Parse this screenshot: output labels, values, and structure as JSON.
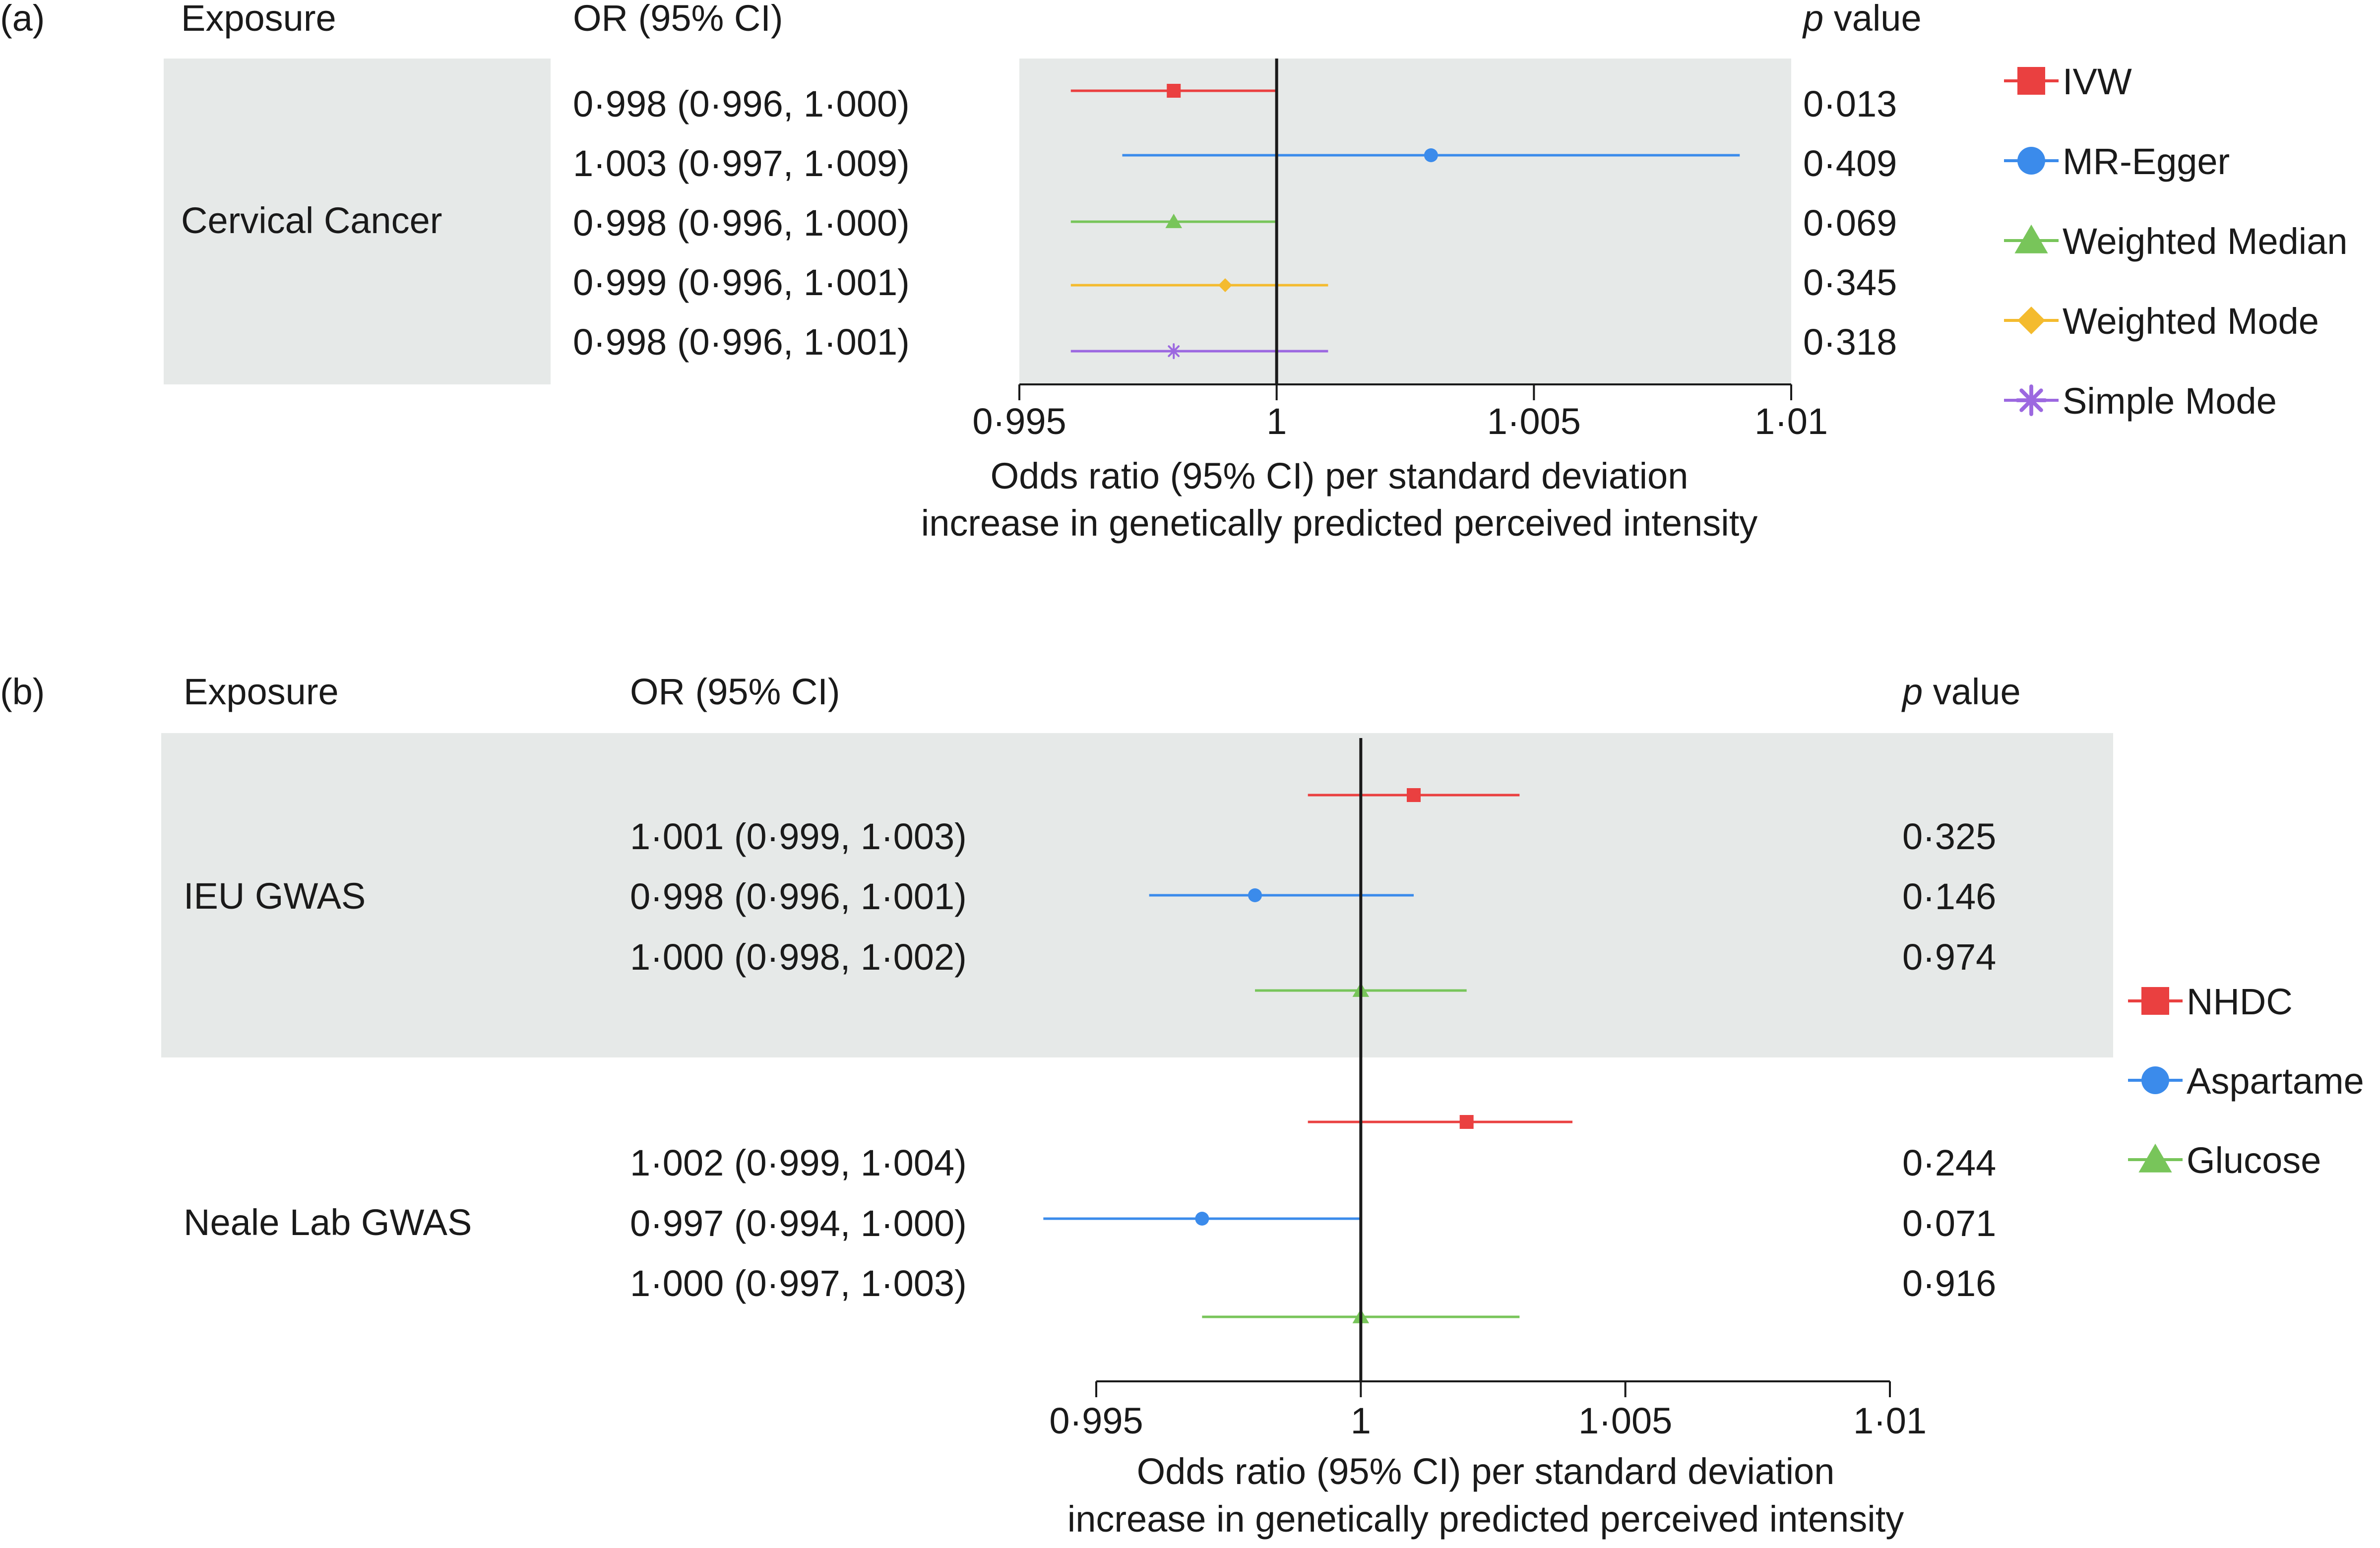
{
  "chart_data": [
    {
      "type": "forest",
      "panel_label": "(a)",
      "headers": {
        "exposure": "Exposure",
        "or": "OR (95% CI)",
        "p_italic": "p",
        "p_rest": " value"
      },
      "axis": {
        "min": 0.995,
        "max": 1.01,
        "ref": 1,
        "ticks": [
          {
            "v": 0.995,
            "label": "0·995"
          },
          {
            "v": 1,
            "label": "1"
          },
          {
            "v": 1.005,
            "label": "1·005"
          },
          {
            "v": 1.01,
            "label": "1·01"
          }
        ],
        "xlabel_line1": "Odds ratio (95% CI) per standard deviation",
        "xlabel_line2": "increase in genetically predicted perceived intensity"
      },
      "legend": [
        {
          "name": "IVW",
          "color": "#ea4040",
          "marker": "square"
        },
        {
          "name": "MR-Egger",
          "color": "#3b8beb",
          "marker": "circle"
        },
        {
          "name": "Weighted Median",
          "color": "#78c55a",
          "marker": "triangle"
        },
        {
          "name": "Weighted Mode",
          "color": "#f4bb2e",
          "marker": "diamond"
        },
        {
          "name": "Simple Mode",
          "color": "#9c68e0",
          "marker": "asterisk"
        }
      ],
      "groups": [
        {
          "exposure": "Cervical Cancer",
          "rows": [
            {
              "method": "IVW",
              "or": 0.998,
              "lo": 0.996,
              "hi": 1.0,
              "or_text": "0·998 (0·996, 1·000)",
              "p_text": "0·013"
            },
            {
              "method": "MR-Egger",
              "or": 1.003,
              "lo": 0.997,
              "hi": 1.009,
              "or_text": "1·003 (0·997, 1·009)",
              "p_text": "0·409"
            },
            {
              "method": "Weighted Median",
              "or": 0.998,
              "lo": 0.996,
              "hi": 1.0,
              "or_text": "0·998 (0·996, 1·000)",
              "p_text": "0·069"
            },
            {
              "method": "Weighted Mode",
              "or": 0.999,
              "lo": 0.996,
              "hi": 1.001,
              "or_text": "0·999 (0·996, 1·001)",
              "p_text": "0·345"
            },
            {
              "method": "Simple Mode",
              "or": 0.998,
              "lo": 0.996,
              "hi": 1.001,
              "or_text": "0·998 (0·996, 1·001)",
              "p_text": "0·318"
            }
          ]
        }
      ]
    },
    {
      "type": "forest",
      "panel_label": "(b)",
      "headers": {
        "exposure": "Exposure",
        "or": "OR (95% CI)",
        "p_italic": "p",
        "p_rest": " value"
      },
      "axis": {
        "min": 0.995,
        "max": 1.01,
        "ref": 1,
        "ticks": [
          {
            "v": 0.995,
            "label": "0·995"
          },
          {
            "v": 1,
            "label": "1"
          },
          {
            "v": 1.005,
            "label": "1·005"
          },
          {
            "v": 1.01,
            "label": "1·01"
          }
        ],
        "xlabel_line1": "Odds ratio (95% CI) per standard deviation",
        "xlabel_line2": "increase in genetically predicted perceived intensity"
      },
      "legend": [
        {
          "name": "NHDC",
          "color": "#ea4040",
          "marker": "square"
        },
        {
          "name": "Aspartame",
          "color": "#3b8beb",
          "marker": "circle"
        },
        {
          "name": "Glucose",
          "color": "#78c55a",
          "marker": "triangle"
        }
      ],
      "groups": [
        {
          "exposure": "IEU GWAS",
          "rows": [
            {
              "series": "NHDC",
              "or": 1.001,
              "lo": 0.999,
              "hi": 1.003,
              "or_text": "1·001 (0·999, 1·003)",
              "p_text": "0·325"
            },
            {
              "series": "Aspartame",
              "or": 0.998,
              "lo": 0.996,
              "hi": 1.001,
              "or_text": "0·998 (0·996, 1·001)",
              "p_text": "0·146"
            },
            {
              "series": "Glucose",
              "or": 1.0,
              "lo": 0.998,
              "hi": 1.002,
              "or_text": "1·000 (0·998, 1·002)",
              "p_text": "0·974"
            }
          ]
        },
        {
          "exposure": "Neale Lab GWAS",
          "rows": [
            {
              "series": "NHDC",
              "or": 1.002,
              "lo": 0.999,
              "hi": 1.004,
              "or_text": "1·002 (0·999, 1·004)",
              "p_text": "0·244"
            },
            {
              "series": "Aspartame",
              "or": 0.997,
              "lo": 0.994,
              "hi": 1.0,
              "or_text": "0·997 (0·994, 1·000)",
              "p_text": "0·071"
            },
            {
              "series": "Glucose",
              "or": 1.0,
              "lo": 0.997,
              "hi": 1.003,
              "or_text": "1·000 (0·997, 1·003)",
              "p_text": "0·916"
            }
          ]
        }
      ]
    }
  ]
}
